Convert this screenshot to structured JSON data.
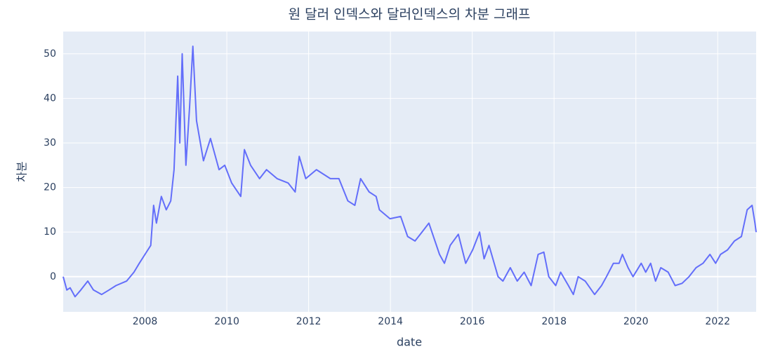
{
  "chart_data": {
    "type": "line",
    "title": "원 달러 인덱스와 달러인덱스의 차분 그래프",
    "x_label": "date",
    "y_label": "차분",
    "color": "#636efa",
    "grid": true,
    "xlim": [
      2006.0,
      2022.94
    ],
    "ylim": [
      -7.9,
      55
    ],
    "xticks": [
      2008,
      2010,
      2012,
      2014,
      2016,
      2018,
      2020,
      2022
    ],
    "yticks": [
      0,
      10,
      20,
      30,
      40,
      50
    ],
    "x": [
      2006.0,
      2006.09,
      2006.17,
      2006.29,
      2006.43,
      2006.6,
      2006.74,
      2006.94,
      2007.12,
      2007.29,
      2007.55,
      2007.73,
      2007.86,
      2008.0,
      2008.14,
      2008.21,
      2008.28,
      2008.4,
      2008.52,
      2008.63,
      2008.71,
      2008.8,
      2008.85,
      2008.91,
      2009.0,
      2009.09,
      2009.17,
      2009.26,
      2009.43,
      2009.6,
      2009.81,
      2009.95,
      2010.12,
      2010.34,
      2010.43,
      2010.58,
      2010.8,
      2010.97,
      2011.23,
      2011.5,
      2011.67,
      2011.77,
      2011.93,
      2012.19,
      2012.53,
      2012.74,
      2012.96,
      2013.13,
      2013.27,
      2013.48,
      2013.65,
      2013.73,
      2013.99,
      2014.25,
      2014.42,
      2014.6,
      2014.77,
      2014.94,
      2015.2,
      2015.32,
      2015.46,
      2015.66,
      2015.84,
      2016.01,
      2016.18,
      2016.29,
      2016.41,
      2016.63,
      2016.75,
      2016.93,
      2017.1,
      2017.27,
      2017.44,
      2017.61,
      2017.75,
      2017.87,
      2018.04,
      2018.16,
      2018.35,
      2018.47,
      2018.59,
      2018.76,
      2018.99,
      2019.16,
      2019.28,
      2019.45,
      2019.59,
      2019.67,
      2019.81,
      2019.93,
      2020.13,
      2020.24,
      2020.36,
      2020.48,
      2020.61,
      2020.79,
      2020.96,
      2021.13,
      2021.3,
      2021.47,
      2021.64,
      2021.81,
      2021.95,
      2022.07,
      2022.24,
      2022.41,
      2022.58,
      2022.72,
      2022.84,
      2022.91,
      2022.94
    ],
    "values": [
      0,
      -3,
      -2.5,
      -4.5,
      -3,
      -1,
      -3,
      -4,
      -3,
      -2,
      -1,
      1,
      3,
      5,
      7,
      16,
      12,
      18,
      15,
      17,
      24,
      45,
      30,
      50,
      25,
      38,
      51.7,
      35,
      26,
      31,
      24,
      25,
      21,
      18,
      28.5,
      25,
      22,
      24,
      22,
      21,
      19,
      27,
      22,
      24,
      22,
      22,
      17,
      16,
      22,
      19,
      18,
      15,
      13,
      13.5,
      9,
      8,
      10,
      12,
      5,
      3,
      7,
      9.5,
      3,
      6,
      10,
      4,
      7,
      0,
      -1,
      2,
      -1,
      1,
      -2,
      5,
      5.5,
      0,
      -2,
      1,
      -2,
      -4,
      0,
      -1,
      -4,
      -2,
      0,
      3,
      3,
      5,
      2,
      0,
      3,
      1,
      3,
      -1,
      2,
      1,
      -2,
      -1.5,
      0,
      2,
      3,
      5,
      3,
      5,
      6,
      8,
      9,
      15,
      16,
      12,
      10
    ]
  }
}
